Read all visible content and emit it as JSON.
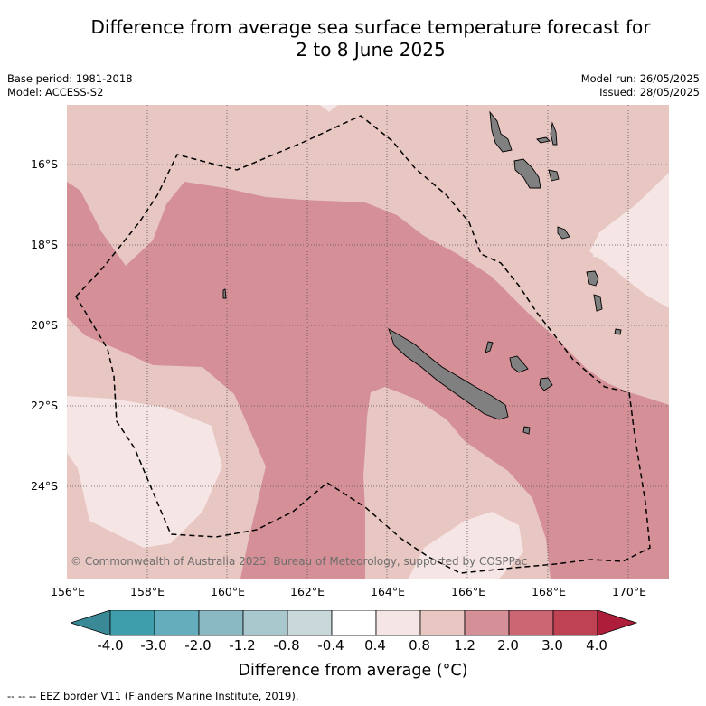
{
  "title_line1": "Difference from average sea surface temperature forecast for",
  "title_line2": "2 to 8 June 2025",
  "base_period": "Base period: 1981-2018",
  "model": "Model: ACCESS-S2",
  "model_run": "Model run: 26/05/2025",
  "issued": "Issued: 28/05/2025",
  "copyright": "© Commonwealth of Australia 2025, Bureau of Meteorology, supported by COSPPac",
  "lat_labels": [
    "16°S",
    "18°S",
    "20°S",
    "22°S",
    "24°S"
  ],
  "lon_labels": [
    "156°E",
    "158°E",
    "160°E",
    "162°E",
    "164°E",
    "166°E",
    "168°E",
    "170°E"
  ],
  "colorbar": {
    "ticks": [
      "-4.0",
      "-3.0",
      "-2.0",
      "-1.2",
      "-0.8",
      "-0.4",
      "0.4",
      "0.8",
      "1.2",
      "2.0",
      "3.0",
      "4.0"
    ],
    "colors": [
      "#3f9eab",
      "#64adbc",
      "#8ab8c3",
      "#a9c8ce",
      "#c9d8db",
      "#ffffff",
      "#f5e6e5",
      "#e8c6c2",
      "#d59097",
      "#cc6673",
      "#bf4253"
    ],
    "under_color": "#3a8996",
    "over_color": "#ae1d3a"
  },
  "colorbar_title": "Difference from average (°C)",
  "legend_text": "EEZ border V11 (Flanders Marine Institute, 2019).",
  "legend_marker": "-- -- --"
}
